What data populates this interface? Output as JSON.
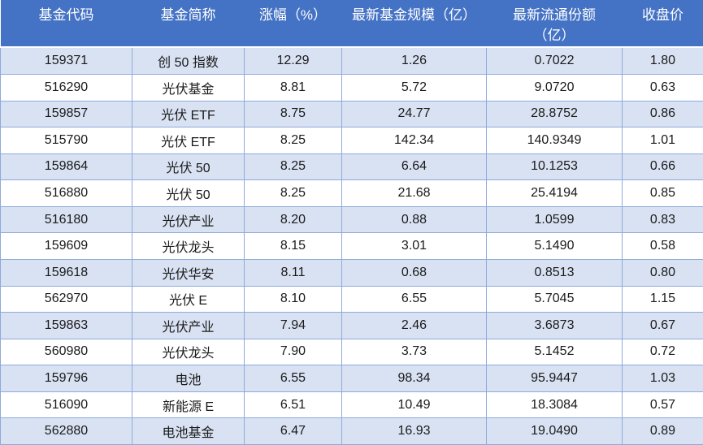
{
  "chart_data": {
    "type": "table",
    "title": "",
    "columns": [
      "基金代码",
      "基金简称",
      "涨幅（%）",
      "最新基金规模（亿）",
      "最新流通份额\n（亿）",
      "收盘价"
    ],
    "rows": [
      [
        "159371",
        "创 50 指数",
        "12.29",
        "1.26",
        "0.7022",
        "1.80"
      ],
      [
        "516290",
        "光伏基金",
        "8.81",
        "5.72",
        "9.0720",
        "0.63"
      ],
      [
        "159857",
        "光伏 ETF",
        "8.75",
        "24.77",
        "28.8752",
        "0.86"
      ],
      [
        "515790",
        "光伏 ETF",
        "8.25",
        "142.34",
        "140.9349",
        "1.01"
      ],
      [
        "159864",
        "光伏 50",
        "8.25",
        "6.64",
        "10.1253",
        "0.66"
      ],
      [
        "516880",
        "光伏 50",
        "8.25",
        "21.68",
        "25.4194",
        "0.85"
      ],
      [
        "516180",
        "光伏产业",
        "8.20",
        "0.88",
        "1.0599",
        "0.83"
      ],
      [
        "159609",
        "光伏龙头",
        "8.15",
        "3.01",
        "5.1490",
        "0.58"
      ],
      [
        "159618",
        "光伏华安",
        "8.11",
        "0.68",
        "0.8513",
        "0.80"
      ],
      [
        "562970",
        "光伏 E",
        "8.10",
        "6.55",
        "5.7045",
        "1.15"
      ],
      [
        "159863",
        "光伏产业",
        "7.94",
        "2.46",
        "3.6873",
        "0.67"
      ],
      [
        "560980",
        "光伏龙头",
        "7.90",
        "3.73",
        "5.1452",
        "0.72"
      ],
      [
        "159796",
        "电池",
        "6.55",
        "98.34",
        "95.9447",
        "1.03"
      ],
      [
        "516090",
        "新能源 E",
        "6.51",
        "10.49",
        "18.3084",
        "0.57"
      ],
      [
        "562880",
        "电池基金",
        "6.47",
        "16.93",
        "19.0490",
        "0.89"
      ]
    ]
  },
  "column_keys": [
    "fund-code",
    "fund-name",
    "change-pct",
    "fund-size",
    "circulating-shares",
    "close-price"
  ],
  "colors": {
    "header_bg": "#4472C4",
    "header_text": "#FFFFFF",
    "stripe_bg": "#D9E2F3",
    "row_bg": "#FFFFFF",
    "border": "#8EAADB",
    "text": "#1A1A1A"
  }
}
